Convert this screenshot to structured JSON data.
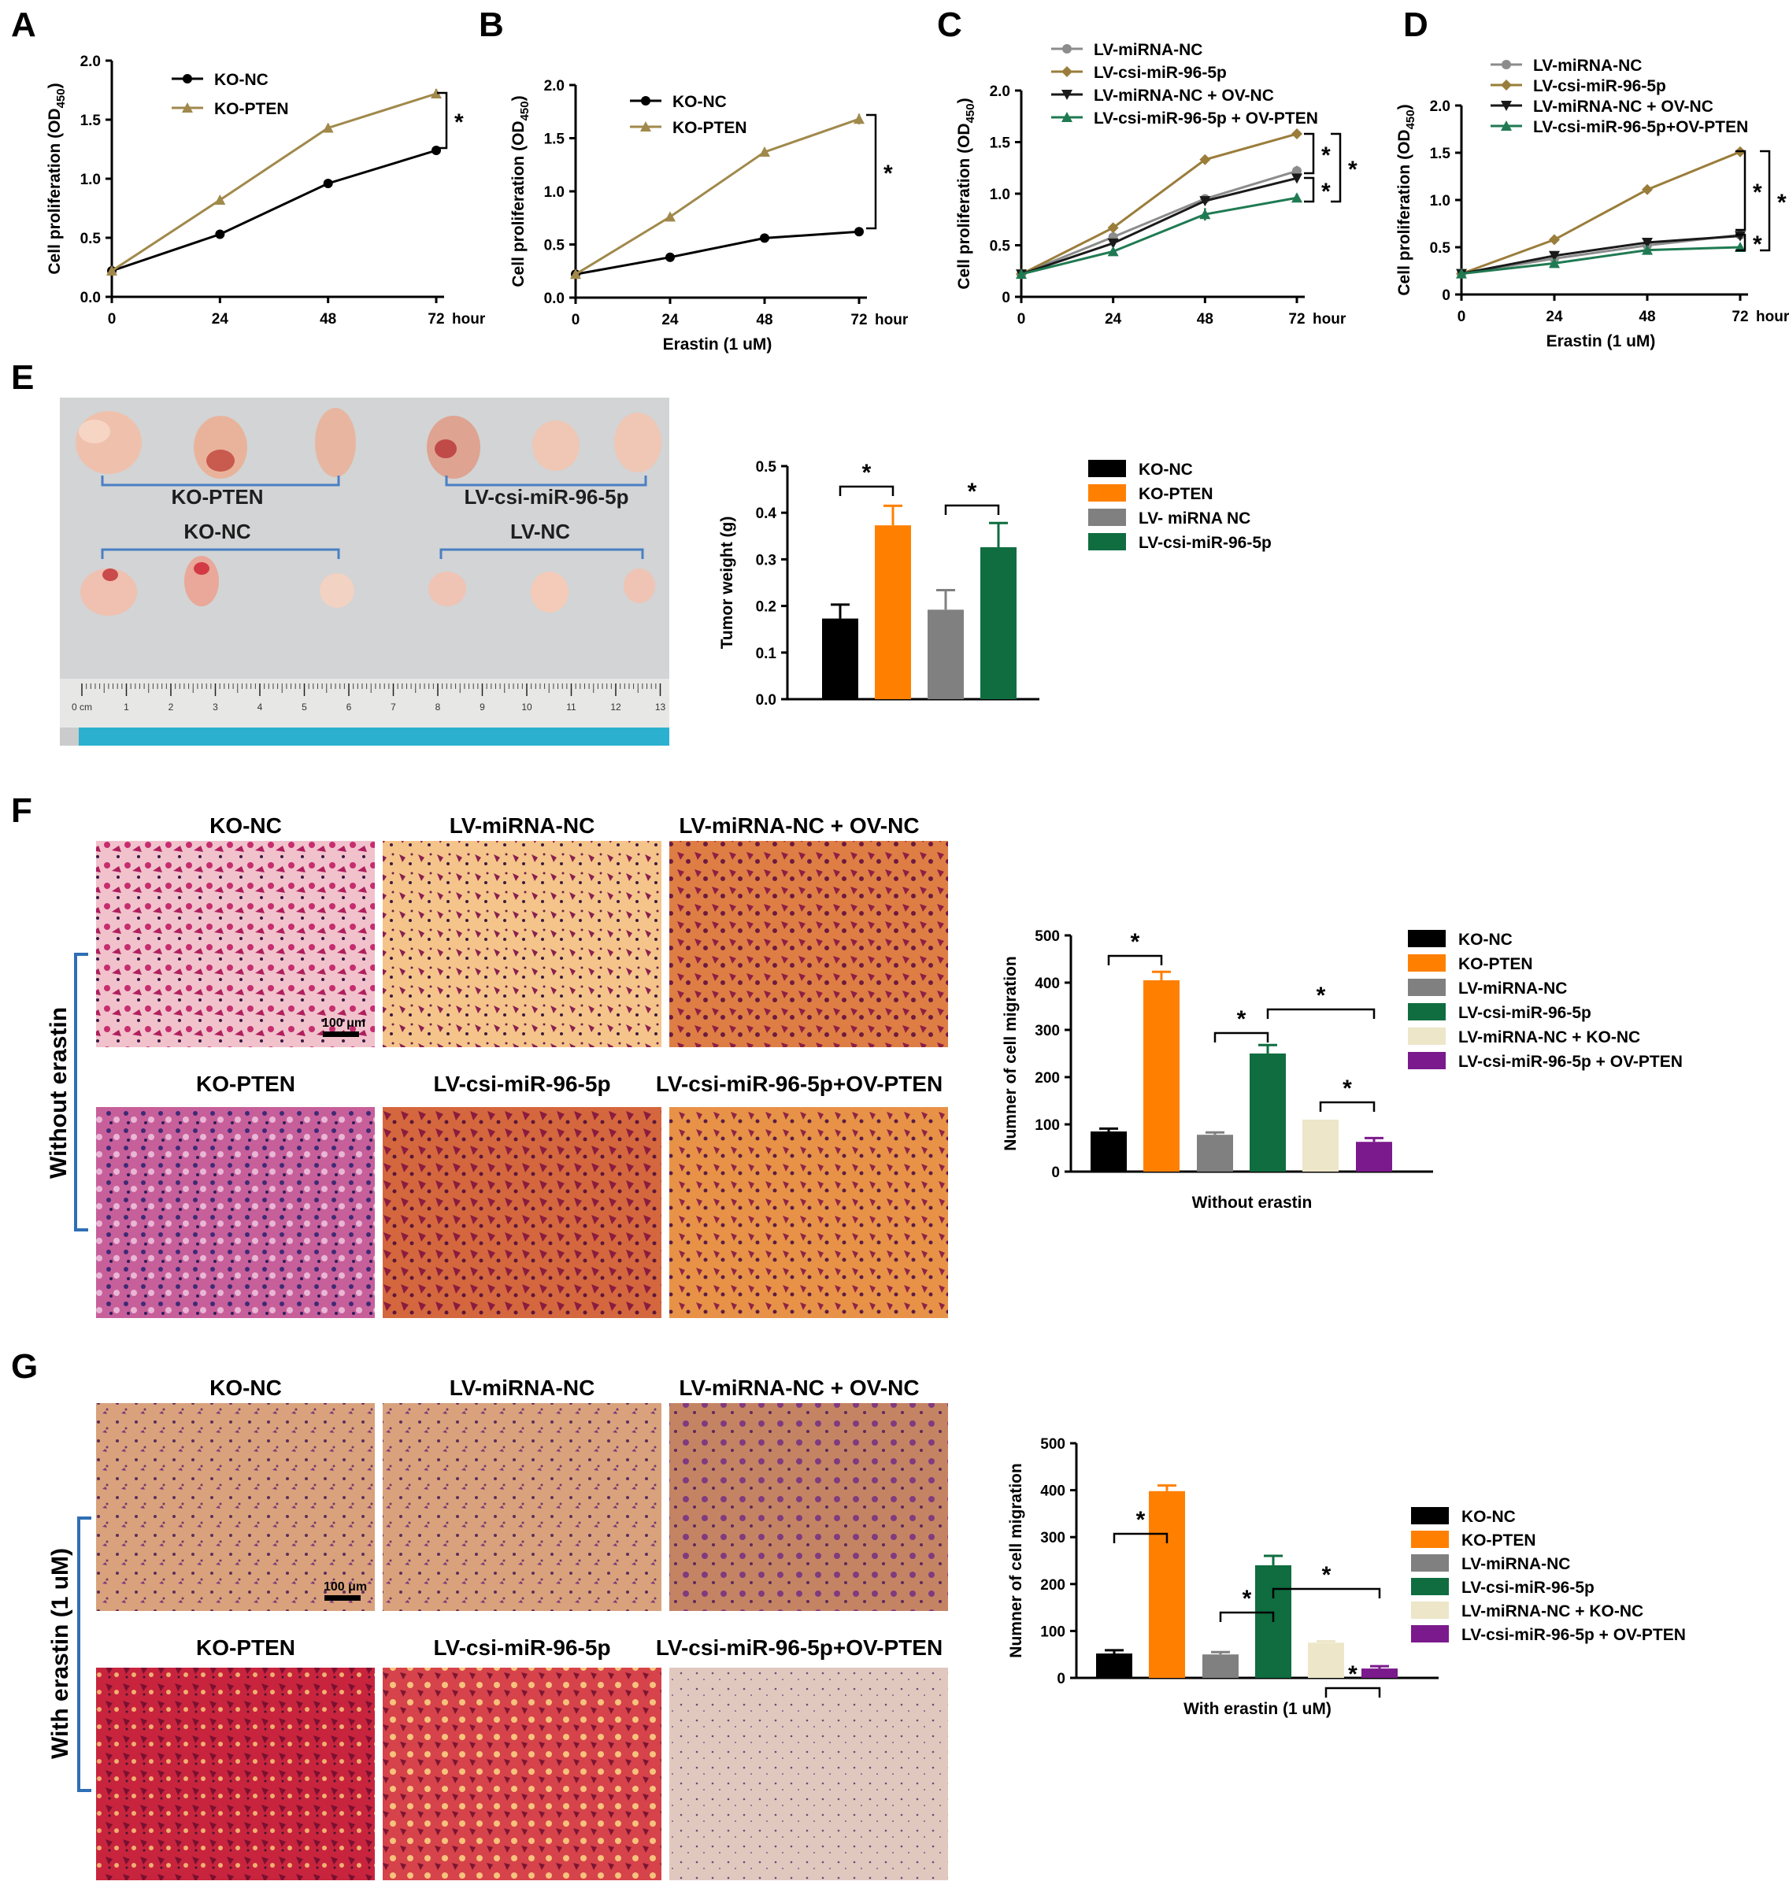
{
  "panel_labels": [
    "A",
    "B",
    "C",
    "D",
    "E",
    "F",
    "G"
  ],
  "icons": {
    "bracket": "significance-bracket",
    "star": "asterisk"
  },
  "colors": {
    "ko_nc": "#000000",
    "ko_pten": "#a0894b",
    "lv_mirna_nc": "#8c8c8c",
    "lv_csi": "#9a7d3a",
    "lv_ov_nc": "#1a1a1a",
    "lv_csi_ov_pten": "#1f7a52",
    "bar_black": "#000000",
    "bar_orange": "#ff8000",
    "bar_gray": "#808080",
    "bar_green": "#0f6d40",
    "bar_beige": "#ede6c8",
    "bar_purple": "#7b1a8c"
  },
  "sig_mark": "*",
  "photo": {
    "labels": [
      "KO-PTEN",
      "LV-csi-miR-96-5p",
      "KO-NC",
      "LV-NC"
    ],
    "ruler_ticks": [
      "0 cm",
      "1",
      "2",
      "3",
      "4",
      "5",
      "6",
      "7",
      "8",
      "9",
      "10",
      "11",
      "12",
      "13"
    ]
  },
  "micro": {
    "F": {
      "side_label": "Without erastin",
      "labels": [
        "KO-NC",
        "LV-miRNA-NC",
        "LV-miRNA-NC + OV-NC",
        "KO-PTEN",
        "LV-csi-miR-96-5p",
        "LV-csi-miR-96-5p+OV-PTEN"
      ],
      "scale_bar": "100 μm"
    },
    "G": {
      "side_label": "With erastin (1 uM)",
      "labels": [
        "KO-NC",
        "LV-miRNA-NC",
        "LV-miRNA-NC + OV-NC",
        "KO-PTEN",
        "LV-csi-miR-96-5p",
        "LV-csi-miR-96-5p+OV-PTEN"
      ],
      "scale_bar": "100 μm"
    }
  },
  "chart_data": [
    {
      "panel": "A",
      "type": "line",
      "x": [
        0,
        24,
        48,
        72
      ],
      "x_unit": "hour",
      "xlabel": "",
      "ylabel": "Cell proliferation (OD450)",
      "ylim": [
        0,
        2.0
      ],
      "yticks": [
        "0.0",
        "0.5",
        "1.0",
        "1.5",
        "2.0"
      ],
      "series": [
        {
          "name": "KO-NC",
          "marker": "circle",
          "values": [
            0.22,
            0.53,
            0.96,
            1.24
          ],
          "err": [
            0,
            0.01,
            0.01,
            0.01
          ]
        },
        {
          "name": "KO-PTEN",
          "marker": "triangle",
          "values": [
            0.22,
            0.82,
            1.43,
            1.72
          ],
          "err": [
            0,
            0.02,
            0.03,
            0.04
          ]
        }
      ],
      "sig": [
        "*"
      ]
    },
    {
      "panel": "B",
      "type": "line",
      "x": [
        0,
        24,
        48,
        72
      ],
      "x_unit": "hour",
      "xlabel": "Erastin (1 uM)",
      "ylabel": "Cell proliferation (OD450)",
      "ylim": [
        0,
        2.0
      ],
      "yticks": [
        "0.0",
        "0.5",
        "1.0",
        "1.5",
        "2.0"
      ],
      "series": [
        {
          "name": "KO-NC",
          "marker": "circle",
          "values": [
            0.22,
            0.38,
            0.56,
            0.62
          ],
          "err": [
            0,
            0.01,
            0.01,
            0.01
          ]
        },
        {
          "name": "KO-PTEN",
          "marker": "triangle",
          "values": [
            0.22,
            0.76,
            1.37,
            1.68
          ],
          "err": [
            0,
            0.03,
            0.04,
            0.05
          ]
        }
      ],
      "sig": [
        "*"
      ]
    },
    {
      "panel": "C",
      "type": "line",
      "x": [
        0,
        24,
        48,
        72
      ],
      "x_unit": "hour",
      "xlabel": "",
      "ylabel": "Cell proliferation (OD450)",
      "ylim": [
        0,
        2.0
      ],
      "yticks": [
        "0",
        "0.5",
        "1.0",
        "1.5",
        "2.0"
      ],
      "series": [
        {
          "name": "LV-miRNA-NC",
          "marker": "circle",
          "values": [
            0.22,
            0.58,
            0.95,
            1.22
          ],
          "err": [
            0,
            0.02,
            0.03,
            0.05
          ]
        },
        {
          "name": "LV-csi-miR-96-5p",
          "marker": "diamond",
          "values": [
            0.22,
            0.67,
            1.33,
            1.58
          ],
          "err": [
            0,
            0.02,
            0.03,
            0.04
          ]
        },
        {
          "name": "LV-miRNA-NC + OV-NC",
          "marker": "tri-down",
          "values": [
            0.22,
            0.52,
            0.93,
            1.15
          ],
          "err": [
            0,
            0.02,
            0.03,
            0.04
          ]
        },
        {
          "name": "LV-csi-miR-96-5p + OV-PTEN",
          "marker": "triangle",
          "values": [
            0.22,
            0.44,
            0.8,
            0.96
          ],
          "err": [
            0,
            0.02,
            0.06,
            0.04
          ]
        }
      ],
      "sig": [
        "*",
        "*",
        "*"
      ]
    },
    {
      "panel": "D",
      "type": "line",
      "x": [
        0,
        24,
        48,
        72
      ],
      "x_unit": "hour",
      "xlabel": "Erastin (1 uM)",
      "ylabel": "Cell proliferation (OD450)",
      "ylim": [
        0,
        2.0
      ],
      "yticks": [
        "0",
        "0.5",
        "1.0",
        "1.5",
        "2.0"
      ],
      "series": [
        {
          "name": "LV-miRNA-NC",
          "marker": "circle",
          "values": [
            0.22,
            0.38,
            0.52,
            0.63
          ],
          "err": [
            0,
            0.02,
            0.02,
            0.02
          ]
        },
        {
          "name": "LV-csi-miR-96-5p",
          "marker": "diamond",
          "values": [
            0.22,
            0.58,
            1.11,
            1.51
          ],
          "err": [
            0,
            0.02,
            0.04,
            0.05
          ]
        },
        {
          "name": "LV-miRNA-NC + OV-NC",
          "marker": "tri-down",
          "values": [
            0.22,
            0.41,
            0.55,
            0.62
          ],
          "err": [
            0,
            0.02,
            0.02,
            0.02
          ]
        },
        {
          "name": "LV-csi-miR-96-5p+OV-PTEN",
          "marker": "triangle",
          "values": [
            0.22,
            0.33,
            0.47,
            0.5
          ],
          "err": [
            0,
            0.02,
            0.02,
            0.02
          ]
        }
      ],
      "sig": [
        "*",
        "*",
        "*"
      ]
    },
    {
      "panel": "E",
      "type": "bar",
      "categories": [
        "KO-NC",
        "KO-PTEN",
        "LV- miRNA NC",
        "LV-csi-miR-96-5p"
      ],
      "values": [
        0.173,
        0.373,
        0.192,
        0.326
      ],
      "err": [
        0.03,
        0.042,
        0.042,
        0.052
      ],
      "ylabel": "Tumor weight (g)",
      "ylim": [
        0,
        0.5
      ],
      "yticks": [
        "0.0",
        "0.1",
        "0.2",
        "0.3",
        "0.4",
        "0.5"
      ],
      "sig": [
        "*",
        "*"
      ]
    },
    {
      "panel": "F",
      "type": "bar",
      "categories": [
        "KO-NC",
        "KO-PTEN",
        "LV-miRNA-NC",
        "LV-csi-miR-96-5p",
        "LV-miRNA-NC + KO-NC",
        "LV-csi-miR-96-5p + OV-PTEN"
      ],
      "values": [
        85,
        405,
        78,
        250,
        110,
        63
      ],
      "err": [
        6,
        18,
        5,
        18,
        0,
        8
      ],
      "xlabel": "Without erastin",
      "ylabel": "Numner of cell migration",
      "ylim": [
        0,
        500
      ],
      "yticks": [
        "0",
        "100",
        "200",
        "300",
        "400",
        "500"
      ],
      "sig": [
        "*",
        "*",
        "*",
        "*"
      ]
    },
    {
      "panel": "G",
      "type": "bar",
      "categories": [
        "KO-NC",
        "KO-PTEN",
        "LV-miRNA-NC",
        "LV-csi-miR-96-5p",
        "LV-miRNA-NC + KO-NC",
        "LV-csi-miR-96-5p + OV-PTEN"
      ],
      "values": [
        52,
        398,
        50,
        240,
        75,
        20
      ],
      "err": [
        7,
        12,
        5,
        20,
        3,
        5
      ],
      "xlabel": "With erastin (1 uM)",
      "ylabel": "Numner of cell migration",
      "ylim": [
        0,
        500
      ],
      "yticks": [
        "0",
        "100",
        "200",
        "300",
        "400",
        "500"
      ],
      "sig": [
        "*",
        "*",
        "*",
        "*"
      ]
    }
  ]
}
